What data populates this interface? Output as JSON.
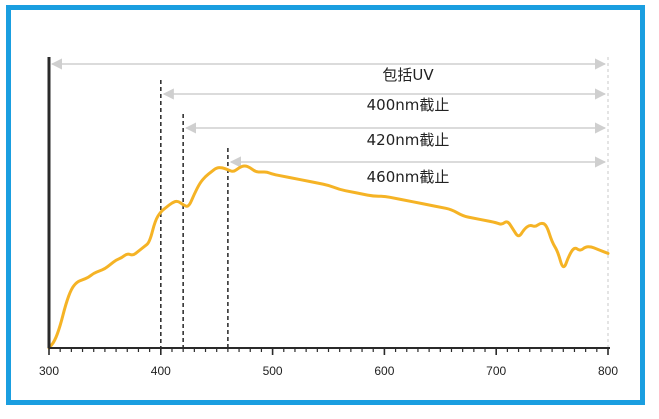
{
  "chart_data": {
    "type": "line",
    "title": "",
    "xlabel": "",
    "ylabel": "",
    "xlim": [
      300,
      800
    ],
    "xticks": [
      300,
      400,
      500,
      600,
      700,
      800
    ],
    "tick_labels": [
      "300",
      "400",
      "500",
      "600",
      "700",
      "800"
    ],
    "grid": false,
    "series": [
      {
        "color": "#f5b325",
        "x": [
          300,
          305,
          310,
          315,
          320,
          325,
          330,
          335,
          340,
          345,
          350,
          355,
          360,
          365,
          370,
          375,
          380,
          385,
          390,
          395,
          400,
          405,
          410,
          415,
          420,
          425,
          430,
          435,
          440,
          445,
          450,
          455,
          460,
          465,
          470,
          475,
          480,
          485,
          490,
          495,
          500,
          510,
          520,
          530,
          540,
          550,
          560,
          570,
          580,
          590,
          600,
          610,
          620,
          630,
          640,
          650,
          660,
          670,
          680,
          690,
          700,
          705,
          710,
          715,
          720,
          725,
          730,
          735,
          740,
          745,
          750,
          755,
          760,
          765,
          770,
          775,
          780,
          785,
          790,
          795,
          800
        ],
        "y": [
          0,
          3,
          10,
          20,
          27,
          30,
          31,
          32,
          34,
          35,
          36,
          38,
          40,
          41,
          43,
          42,
          44,
          46,
          48,
          58,
          62,
          64,
          66,
          67,
          65,
          64,
          70,
          75,
          78,
          80,
          82,
          82,
          81,
          80,
          82,
          83,
          82,
          80,
          80,
          80,
          79,
          78,
          77,
          76,
          75,
          74,
          72,
          71,
          70,
          69,
          69,
          68,
          67,
          66,
          65,
          64,
          63,
          60,
          59,
          58,
          57,
          56,
          58,
          54,
          50,
          54,
          56,
          55,
          57,
          56,
          48,
          44,
          35,
          42,
          46,
          44,
          46,
          46,
          45,
          44,
          43
        ]
      }
    ],
    "cutoffs": [
      {
        "x": 300,
        "label": "包括UV"
      },
      {
        "x": 400,
        "label": "400nm截止"
      },
      {
        "x": 420,
        "label": "420nm截止"
      },
      {
        "x": 460,
        "label": "460nm截止"
      }
    ],
    "range_end": 800
  }
}
